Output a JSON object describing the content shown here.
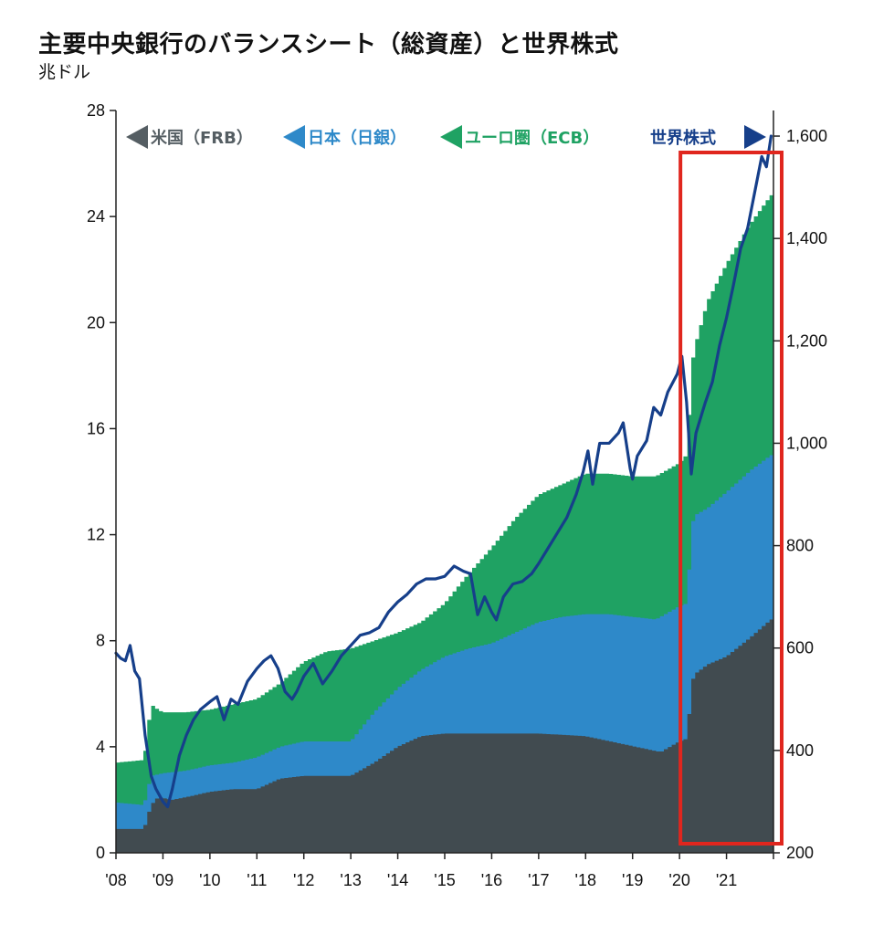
{
  "title": "主要中央銀行のバランスシート（総資産）と世界株式",
  "unit_label": "兆ドル",
  "colors": {
    "frb": "#414b50",
    "boj": "#2e89c9",
    "ecb": "#1fa263",
    "equity": "#163f8a",
    "highlight": "#e0261e",
    "frb_label": "#555e63",
    "boj_label": "#2e89c9",
    "ecb_label": "#1fa263",
    "equity_label": "#163f8a"
  },
  "chart_data": {
    "type": "area",
    "title": "主要中央銀行のバランスシート（総資産）と世界株式",
    "ylabel": "兆ドル",
    "x_range": [
      2008.0,
      2022.0
    ],
    "ylim": [
      0,
      28
    ],
    "y2lim": [
      200,
      1650
    ],
    "y_ticks": [
      0,
      4,
      8,
      12,
      16,
      20,
      24,
      28
    ],
    "y2_ticks": [
      200,
      400,
      600,
      800,
      1000,
      1200,
      1400,
      1600
    ],
    "y2_tick_labels": [
      "200",
      "400",
      "600",
      "800",
      "1,000",
      "1,200",
      "1,400",
      "1,600"
    ],
    "x_ticks": [
      2008,
      2009,
      2010,
      2011,
      2012,
      2013,
      2014,
      2015,
      2016,
      2017,
      2018,
      2019,
      2020,
      2021
    ],
    "x_tick_labels": [
      "'08",
      "'09",
      "'10",
      "'11",
      "'12",
      "'13",
      "'14",
      "'15",
      "'16",
      "'17",
      "'18",
      "'19",
      "'20",
      "'21"
    ],
    "legend": [
      {
        "label": "米国（FRB）",
        "color": "#555e63",
        "arrow": "left"
      },
      {
        "label": "日本（日銀）",
        "color": "#2e89c9",
        "arrow": "left"
      },
      {
        "label": "ユーロ圏（ECB）",
        "color": "#1fa263",
        "arrow": "left"
      },
      {
        "label": "世界株式",
        "color": "#163f8a",
        "arrow": "right"
      }
    ],
    "highlight": {
      "from": 2020.0,
      "to": 2022.0
    },
    "series": [
      {
        "name": "米国（FRB）",
        "axis": "left",
        "kind": "stacked-area",
        "points": [
          [
            2008.0,
            0.9
          ],
          [
            2008.6,
            0.9
          ],
          [
            2008.75,
            1.8
          ],
          [
            2008.9,
            2.1
          ],
          [
            2009.2,
            2.0
          ],
          [
            2009.5,
            2.1
          ],
          [
            2010.0,
            2.3
          ],
          [
            2010.5,
            2.4
          ],
          [
            2011.0,
            2.4
          ],
          [
            2011.5,
            2.8
          ],
          [
            2012.0,
            2.9
          ],
          [
            2012.5,
            2.9
          ],
          [
            2013.0,
            2.9
          ],
          [
            2013.5,
            3.4
          ],
          [
            2014.0,
            4.0
          ],
          [
            2014.5,
            4.4
          ],
          [
            2015.0,
            4.5
          ],
          [
            2016.0,
            4.5
          ],
          [
            2017.0,
            4.5
          ],
          [
            2018.0,
            4.4
          ],
          [
            2018.8,
            4.1
          ],
          [
            2019.6,
            3.8
          ],
          [
            2020.0,
            4.2
          ],
          [
            2020.15,
            4.3
          ],
          [
            2020.3,
            6.7
          ],
          [
            2020.6,
            7.1
          ],
          [
            2021.0,
            7.4
          ],
          [
            2021.5,
            8.1
          ],
          [
            2021.95,
            8.8
          ]
        ]
      },
      {
        "name": "日本（日銀）",
        "axis": "left",
        "kind": "stacked-area",
        "points": [
          [
            2008.0,
            1.9
          ],
          [
            2008.6,
            1.8
          ],
          [
            2008.75,
            2.9
          ],
          [
            2009.0,
            3.0
          ],
          [
            2009.5,
            3.1
          ],
          [
            2010.0,
            3.3
          ],
          [
            2010.5,
            3.4
          ],
          [
            2011.0,
            3.6
          ],
          [
            2011.5,
            4.0
          ],
          [
            2012.0,
            4.2
          ],
          [
            2012.5,
            4.2
          ],
          [
            2013.0,
            4.2
          ],
          [
            2013.5,
            5.3
          ],
          [
            2014.0,
            6.2
          ],
          [
            2014.5,
            6.9
          ],
          [
            2015.0,
            7.4
          ],
          [
            2015.5,
            7.7
          ],
          [
            2016.0,
            7.9
          ],
          [
            2016.5,
            8.3
          ],
          [
            2017.0,
            8.7
          ],
          [
            2017.5,
            8.9
          ],
          [
            2018.0,
            9.0
          ],
          [
            2018.5,
            9.0
          ],
          [
            2019.0,
            8.9
          ],
          [
            2019.5,
            8.8
          ],
          [
            2020.0,
            9.3
          ],
          [
            2020.15,
            9.4
          ],
          [
            2020.3,
            12.7
          ],
          [
            2020.6,
            13.0
          ],
          [
            2021.0,
            13.6
          ],
          [
            2021.5,
            14.4
          ],
          [
            2021.95,
            15.0
          ]
        ]
      },
      {
        "name": "ユーロ圏（ECB）",
        "axis": "left",
        "kind": "stacked-area",
        "points": [
          [
            2008.0,
            3.4
          ],
          [
            2008.6,
            3.5
          ],
          [
            2008.75,
            5.6
          ],
          [
            2008.9,
            5.4
          ],
          [
            2009.0,
            5.3
          ],
          [
            2009.5,
            5.3
          ],
          [
            2010.0,
            5.4
          ],
          [
            2010.5,
            5.6
          ],
          [
            2011.0,
            5.8
          ],
          [
            2011.5,
            6.4
          ],
          [
            2012.0,
            7.2
          ],
          [
            2012.5,
            7.6
          ],
          [
            2013.0,
            7.7
          ],
          [
            2013.5,
            8.0
          ],
          [
            2014.0,
            8.3
          ],
          [
            2014.5,
            8.7
          ],
          [
            2015.0,
            9.4
          ],
          [
            2015.5,
            10.5
          ],
          [
            2016.0,
            11.5
          ],
          [
            2016.5,
            12.6
          ],
          [
            2017.0,
            13.5
          ],
          [
            2017.5,
            13.9
          ],
          [
            2018.0,
            14.3
          ],
          [
            2018.5,
            14.3
          ],
          [
            2019.0,
            14.2
          ],
          [
            2019.5,
            14.2
          ],
          [
            2020.0,
            14.7
          ],
          [
            2020.15,
            15.0
          ],
          [
            2020.3,
            18.9
          ],
          [
            2020.6,
            20.8
          ],
          [
            2021.0,
            22.2
          ],
          [
            2021.5,
            23.7
          ],
          [
            2021.95,
            24.8
          ]
        ]
      },
      {
        "name": "世界株式",
        "axis": "right",
        "kind": "line",
        "points": [
          [
            2008.0,
            590
          ],
          [
            2008.1,
            580
          ],
          [
            2008.2,
            575
          ],
          [
            2008.3,
            605
          ],
          [
            2008.4,
            555
          ],
          [
            2008.5,
            540
          ],
          [
            2008.62,
            430
          ],
          [
            2008.75,
            350
          ],
          [
            2008.85,
            325
          ],
          [
            2009.0,
            300
          ],
          [
            2009.1,
            290
          ],
          [
            2009.2,
            325
          ],
          [
            2009.35,
            390
          ],
          [
            2009.5,
            430
          ],
          [
            2009.65,
            460
          ],
          [
            2009.8,
            480
          ],
          [
            2010.0,
            495
          ],
          [
            2010.15,
            505
          ],
          [
            2010.3,
            460
          ],
          [
            2010.45,
            500
          ],
          [
            2010.6,
            490
          ],
          [
            2010.8,
            535
          ],
          [
            2011.0,
            560
          ],
          [
            2011.15,
            575
          ],
          [
            2011.3,
            585
          ],
          [
            2011.45,
            560
          ],
          [
            2011.6,
            515
          ],
          [
            2011.75,
            500
          ],
          [
            2011.85,
            515
          ],
          [
            2012.0,
            545
          ],
          [
            2012.2,
            570
          ],
          [
            2012.4,
            530
          ],
          [
            2012.6,
            555
          ],
          [
            2012.8,
            585
          ],
          [
            2013.0,
            605
          ],
          [
            2013.2,
            625
          ],
          [
            2013.4,
            630
          ],
          [
            2013.6,
            640
          ],
          [
            2013.8,
            670
          ],
          [
            2014.0,
            690
          ],
          [
            2014.2,
            705
          ],
          [
            2014.4,
            725
          ],
          [
            2014.6,
            735
          ],
          [
            2014.8,
            735
          ],
          [
            2015.0,
            740
          ],
          [
            2015.2,
            760
          ],
          [
            2015.4,
            750
          ],
          [
            2015.55,
            745
          ],
          [
            2015.7,
            665
          ],
          [
            2015.85,
            700
          ],
          [
            2016.0,
            670
          ],
          [
            2016.1,
            655
          ],
          [
            2016.25,
            700
          ],
          [
            2016.45,
            725
          ],
          [
            2016.65,
            730
          ],
          [
            2016.85,
            745
          ],
          [
            2017.0,
            765
          ],
          [
            2017.2,
            795
          ],
          [
            2017.4,
            825
          ],
          [
            2017.6,
            855
          ],
          [
            2017.8,
            900
          ],
          [
            2017.95,
            945
          ],
          [
            2018.05,
            985
          ],
          [
            2018.15,
            920
          ],
          [
            2018.3,
            1000
          ],
          [
            2018.5,
            1000
          ],
          [
            2018.7,
            1020
          ],
          [
            2018.8,
            1040
          ],
          [
            2018.95,
            950
          ],
          [
            2019.0,
            930
          ],
          [
            2019.1,
            975
          ],
          [
            2019.3,
            1005
          ],
          [
            2019.45,
            1070
          ],
          [
            2019.6,
            1055
          ],
          [
            2019.75,
            1100
          ],
          [
            2019.95,
            1135
          ],
          [
            2020.05,
            1170
          ],
          [
            2020.15,
            1080
          ],
          [
            2020.25,
            940
          ],
          [
            2020.35,
            1020
          ],
          [
            2020.55,
            1080
          ],
          [
            2020.7,
            1120
          ],
          [
            2020.85,
            1190
          ],
          [
            2021.0,
            1245
          ],
          [
            2021.15,
            1310
          ],
          [
            2021.3,
            1380
          ],
          [
            2021.45,
            1420
          ],
          [
            2021.6,
            1490
          ],
          [
            2021.75,
            1560
          ],
          [
            2021.85,
            1540
          ],
          [
            2021.95,
            1600
          ]
        ]
      }
    ]
  }
}
